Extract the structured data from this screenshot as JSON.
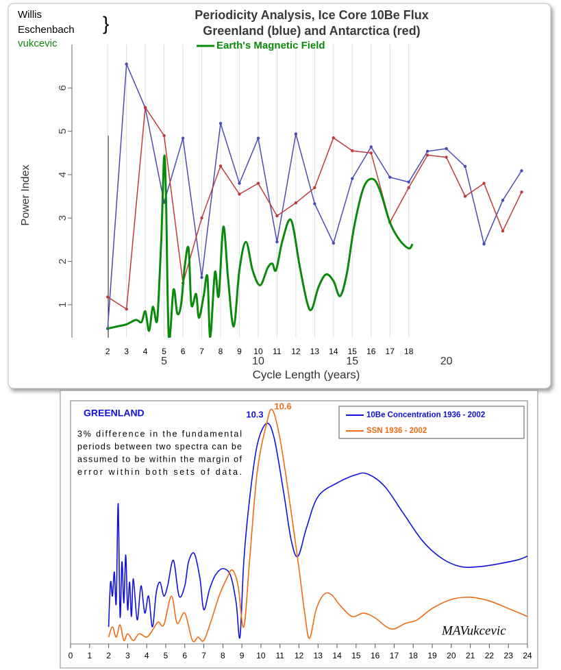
{
  "chart_data": [
    {
      "type": "line",
      "authors": [
        "Willis",
        "Eschenbach"
      ],
      "brace": "}",
      "author2": "vukcevic",
      "title": "Periodicity Analysis, Ice Core 10Be Flux",
      "subtitle": "Greenland (blue) and Antarctica (red)",
      "xlabel": "Cycle Length (years)",
      "ylabel": "Power Index",
      "xlim": [
        0.1,
        24.6
      ],
      "ylim": [
        0.24,
        7
      ],
      "xticks": [
        5,
        10,
        15,
        20
      ],
      "xticks_small": [
        2,
        3,
        4,
        5,
        6,
        7,
        8,
        9,
        10,
        11,
        12,
        13,
        14,
        15,
        16,
        17,
        18
      ],
      "yticks": [
        1,
        2,
        3,
        4,
        5,
        6
      ],
      "grid": true,
      "series": [
        {
          "color": "#4a4ab8",
          "markers": true,
          "x": [
            2,
            3,
            4,
            5,
            6,
            7,
            8,
            9,
            10,
            11,
            12,
            13,
            14,
            15,
            16,
            17,
            18,
            19,
            20,
            21,
            22,
            23,
            24
          ],
          "values": [
            0.45,
            6.55,
            5.54,
            3.36,
            4.84,
            1.63,
            5.18,
            3.8,
            4.84,
            2.45,
            4.94,
            3.33,
            2.42,
            3.91,
            4.64,
            3.94,
            3.83,
            4.54,
            4.6,
            4.19,
            2.4,
            3.41,
            4.09
          ]
        },
        {
          "color": "#c03a3a",
          "markers": true,
          "x": [
            2,
            3,
            4,
            5,
            6,
            7,
            8,
            9,
            10,
            11,
            12,
            13,
            14,
            15,
            16,
            17,
            18,
            19,
            20,
            21,
            22,
            23,
            24
          ],
          "values": [
            1.18,
            0.9,
            5.55,
            4.9,
            1.5,
            3.0,
            4.2,
            3.55,
            3.8,
            3.05,
            3.35,
            3.7,
            4.85,
            4.55,
            4.5,
            2.9,
            3.7,
            4.45,
            4.4,
            3.5,
            3.8,
            2.7,
            3.6
          ]
        },
        {
          "name": "Earth's Magnetic Field",
          "color": "#0a8a0a",
          "markers": false,
          "x": [
            2.0,
            2.5,
            3.0,
            3.5,
            3.8,
            4.0,
            4.2,
            4.4,
            4.6,
            4.7,
            4.85,
            5.0,
            5.1,
            5.25,
            5.5,
            5.7,
            5.9,
            6.1,
            6.3,
            6.45,
            6.7,
            6.85,
            7.1,
            7.3,
            7.45,
            7.7,
            7.9,
            8.15,
            8.4,
            8.7,
            9.0,
            9.35,
            9.7,
            10.1,
            10.5,
            10.75,
            10.95,
            11.3,
            11.75,
            12.2,
            12.6,
            12.85,
            13.2,
            13.6,
            14.0,
            14.35,
            14.7,
            15.1,
            15.6,
            16.1,
            16.5,
            17.0,
            17.5,
            18.0,
            18.2
          ],
          "values": [
            0.45,
            0.5,
            0.55,
            0.65,
            0.6,
            0.85,
            0.4,
            0.95,
            0.6,
            1.1,
            2.5,
            4.4,
            3.5,
            0.25,
            1.35,
            0.8,
            1.0,
            1.9,
            2.3,
            1.0,
            1.25,
            0.7,
            1.2,
            1.65,
            0.25,
            1.75,
            1.2,
            2.8,
            1.6,
            0.5,
            1.8,
            2.45,
            1.8,
            1.45,
            1.85,
            1.95,
            1.8,
            2.5,
            2.95,
            1.9,
            1.05,
            0.9,
            1.4,
            1.7,
            1.55,
            1.2,
            1.7,
            2.8,
            3.7,
            3.9,
            3.6,
            2.9,
            2.5,
            2.3,
            2.4
          ]
        }
      ]
    },
    {
      "type": "line",
      "region": "GREENLAND",
      "note_lines": [
        "3% difference in the fundamental",
        "periods between two spectra can be",
        "assumed to be within the margin of",
        "error within both sets of data."
      ],
      "signature": "MAVukcevic",
      "peak_labels": [
        "10.3",
        "10.6"
      ],
      "xlim": [
        0,
        24
      ],
      "ylim": [
        0,
        100
      ],
      "xticks": [
        0,
        1,
        2,
        3,
        4,
        5,
        6,
        7,
        8,
        9,
        10,
        11,
        12,
        13,
        14,
        15,
        16,
        17,
        18,
        19,
        20,
        21,
        22,
        23,
        24
      ],
      "series": [
        {
          "name": "10Be Concentration 1936 - 2002",
          "color": "#1010e0",
          "x": [
            2.0,
            2.1,
            2.2,
            2.3,
            2.4,
            2.5,
            2.6,
            2.7,
            2.8,
            2.9,
            3.0,
            3.1,
            3.2,
            3.3,
            3.5,
            3.7,
            3.9,
            4.1,
            4.3,
            4.5,
            4.7,
            4.9,
            5.1,
            5.4,
            5.7,
            6.0,
            6.2,
            6.5,
            6.8,
            7.0,
            7.3,
            7.6,
            8.0,
            8.4,
            8.7,
            8.9,
            9.1,
            9.4,
            9.8,
            10.3,
            10.7,
            11.2,
            11.6,
            11.95,
            12.4,
            13.0,
            14.0,
            15.0,
            15.6,
            16.5,
            17.5,
            18.5,
            19.5,
            20.5,
            21.5,
            22.5,
            23.5,
            24.0
          ],
          "values": [
            7.0,
            25.4,
            19.7,
            29.6,
            16.9,
            57.7,
            11.3,
            33.8,
            16.9,
            36.6,
            14.1,
            25.4,
            11.3,
            26.8,
            9.9,
            23.9,
            12.7,
            19.7,
            7.0,
            21.1,
            25.4,
            19.7,
            23.9,
            34.4,
            19.7,
            23.9,
            33.8,
            37.2,
            26.8,
            14.1,
            22.5,
            28.2,
            31.0,
            28.2,
            16.9,
            2.8,
            33.8,
            59.2,
            81.7,
            90.7,
            84.5,
            62.0,
            42.3,
            36.1,
            47.9,
            60.6,
            66.2,
            69.6,
            69.9,
            64.8,
            53.5,
            42.3,
            35.2,
            31.8,
            31.8,
            33.0,
            34.6,
            36.1
          ]
        },
        {
          "name": "SSN 1936 - 2002",
          "color": "#f06a10",
          "x": [
            2.0,
            2.2,
            2.4,
            2.6,
            2.8,
            3.0,
            3.3,
            3.6,
            4.0,
            4.3,
            4.6,
            4.9,
            5.3,
            5.6,
            6.0,
            6.4,
            6.7,
            7.0,
            7.4,
            7.8,
            8.2,
            8.5,
            8.8,
            9.1,
            9.4,
            9.8,
            10.3,
            10.6,
            11.0,
            11.5,
            12.0,
            12.3,
            12.55,
            12.9,
            13.3,
            13.7,
            14.2,
            14.8,
            15.4,
            16.0,
            16.6,
            17.0,
            17.6,
            18.2,
            19.0,
            20.0,
            21.0,
            22.0,
            23.0,
            24.0
          ],
          "values": [
            2.8,
            7.0,
            2.8,
            7.9,
            1.4,
            4.2,
            1.4,
            4.2,
            2.8,
            5.6,
            9.0,
            7.9,
            19.7,
            8.5,
            12.7,
            1.4,
            2.8,
            1.4,
            9.9,
            19.7,
            26.8,
            30.4,
            23.9,
            7.0,
            33.8,
            70.4,
            90.7,
            96.3,
            84.5,
            59.2,
            31.0,
            12.7,
            2.3,
            14.1,
            20.3,
            20.3,
            15.5,
            11.3,
            12.7,
            10.7,
            7.0,
            6.2,
            8.5,
            9.9,
            14.6,
            18.3,
            19.2,
            17.7,
            14.6,
            11.3
          ]
        }
      ]
    }
  ]
}
